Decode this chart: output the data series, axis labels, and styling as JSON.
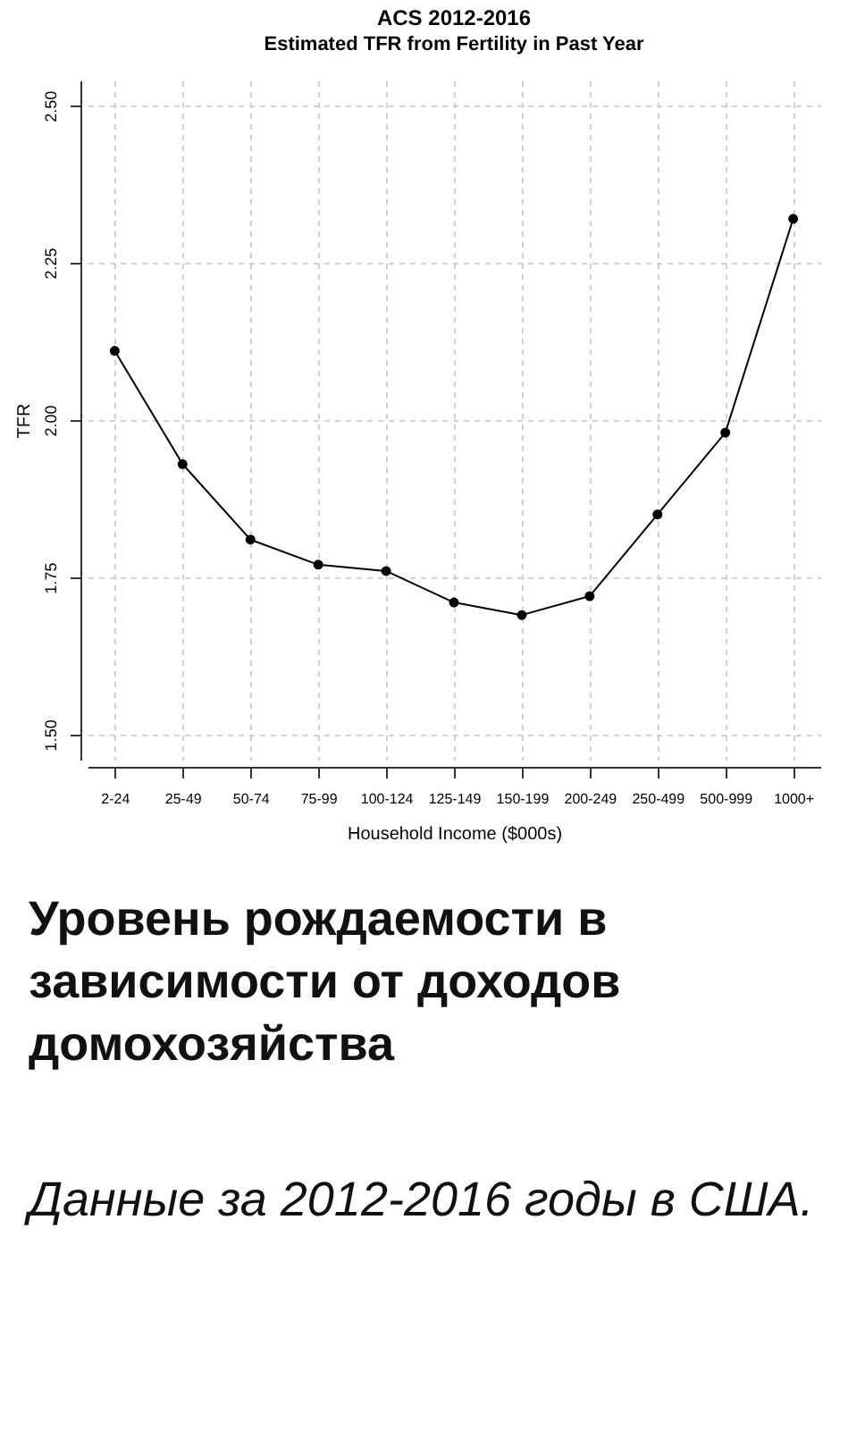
{
  "chart_data": {
    "type": "line",
    "title": "ACS 2012-2016",
    "subtitle": "Estimated TFR from Fertility in Past Year",
    "xlabel": "Household Income ($000s)",
    "ylabel": "TFR",
    "categories": [
      "2-24",
      "25-49",
      "50-74",
      "75-99",
      "100-124",
      "125-149",
      "150-199",
      "200-249",
      "250-499",
      "500-999",
      "1000+"
    ],
    "series": [
      {
        "color": "#000000",
        "values": [
          2.11,
          1.93,
          1.81,
          1.77,
          1.76,
          1.71,
          1.69,
          1.72,
          1.85,
          1.98,
          2.32
        ]
      }
    ],
    "ylim": [
      1.46,
      2.54
    ],
    "yticks": [
      {
        "value": 1.5,
        "label": "1.50"
      },
      {
        "value": 1.75,
        "label": "1.75"
      },
      {
        "value": 2,
        "label": "2.00"
      },
      {
        "value": 2.25,
        "label": "2.25"
      },
      {
        "value": 2.5,
        "label": "2.50"
      }
    ],
    "grid": true,
    "marker": "circle",
    "line_style": "solid",
    "annotations": [
      "Уровень рождаемости в зависимости от доходов домохозяйства",
      "Данные за 2012-2016 годы в США."
    ]
  }
}
